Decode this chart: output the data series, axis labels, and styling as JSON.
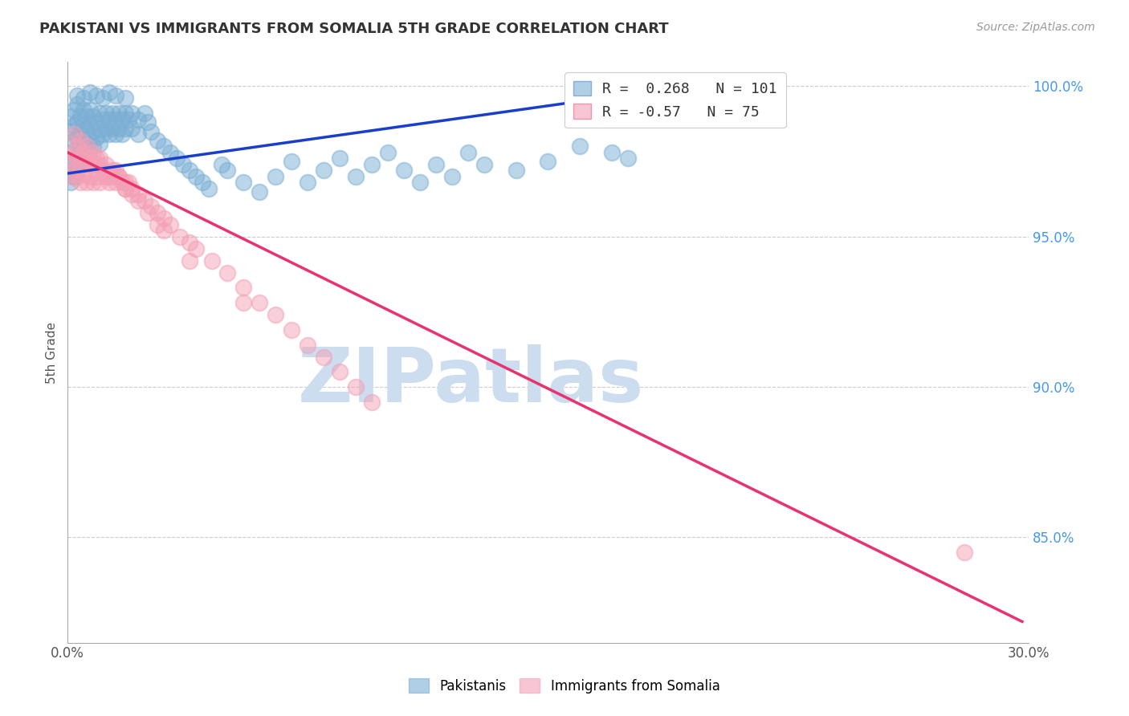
{
  "title": "PAKISTANI VS IMMIGRANTS FROM SOMALIA 5TH GRADE CORRELATION CHART",
  "source": "Source: ZipAtlas.com",
  "ylabel": "5th Grade",
  "xmin": 0.0,
  "xmax": 0.3,
  "ymin": 0.815,
  "ymax": 1.008,
  "yticks": [
    0.85,
    0.9,
    0.95,
    1.0
  ],
  "ytick_labels": [
    "85.0%",
    "90.0%",
    "95.0%",
    "100.0%"
  ],
  "xticks": [
    0.0,
    0.05,
    0.1,
    0.15,
    0.2,
    0.25,
    0.3
  ],
  "xtick_labels": [
    "0.0%",
    "",
    "",
    "",
    "",
    "",
    "30.0%"
  ],
  "blue_R": 0.268,
  "blue_N": 101,
  "pink_R": -0.57,
  "pink_N": 75,
  "blue_color": "#7bafd4",
  "pink_color": "#f4a0b5",
  "blue_line_color": "#1a3ecc",
  "pink_line_color": "#e8336e",
  "watermark": "ZIPatlas",
  "watermark_color": "#ccddf0",
  "legend_label_blue": "Pakistanis",
  "legend_label_pink": "Immigrants from Somalia",
  "blue_line_x0": 0.0,
  "blue_line_x1": 0.18,
  "blue_line_y0": 0.971,
  "blue_line_y1": 0.998,
  "pink_line_x0": 0.0,
  "pink_line_x1": 0.298,
  "pink_line_y0": 0.978,
  "pink_line_y1": 0.822,
  "blue_pts_x": [
    0.001,
    0.001,
    0.001,
    0.001,
    0.001,
    0.002,
    0.002,
    0.002,
    0.002,
    0.002,
    0.003,
    0.003,
    0.003,
    0.003,
    0.003,
    0.004,
    0.004,
    0.004,
    0.004,
    0.005,
    0.005,
    0.005,
    0.005,
    0.006,
    0.006,
    0.006,
    0.007,
    0.007,
    0.007,
    0.008,
    0.008,
    0.008,
    0.009,
    0.009,
    0.01,
    0.01,
    0.01,
    0.011,
    0.011,
    0.012,
    0.012,
    0.013,
    0.013,
    0.014,
    0.014,
    0.015,
    0.015,
    0.016,
    0.016,
    0.017,
    0.017,
    0.018,
    0.018,
    0.019,
    0.02,
    0.02,
    0.022,
    0.022,
    0.024,
    0.025,
    0.026,
    0.028,
    0.03,
    0.032,
    0.034,
    0.036,
    0.038,
    0.04,
    0.042,
    0.044,
    0.048,
    0.05,
    0.055,
    0.06,
    0.065,
    0.07,
    0.075,
    0.08,
    0.085,
    0.09,
    0.095,
    0.1,
    0.105,
    0.11,
    0.115,
    0.12,
    0.125,
    0.13,
    0.14,
    0.15,
    0.16,
    0.17,
    0.175,
    0.003,
    0.005,
    0.007,
    0.009,
    0.011,
    0.013,
    0.015,
    0.018
  ],
  "blue_pts_y": [
    0.99,
    0.985,
    0.978,
    0.972,
    0.968,
    0.992,
    0.987,
    0.982,
    0.975,
    0.97,
    0.994,
    0.988,
    0.983,
    0.977,
    0.972,
    0.99,
    0.985,
    0.98,
    0.975,
    0.992,
    0.987,
    0.982,
    0.977,
    0.99,
    0.985,
    0.98,
    0.992,
    0.987,
    0.982,
    0.99,
    0.985,
    0.98,
    0.988,
    0.983,
    0.991,
    0.986,
    0.981,
    0.989,
    0.984,
    0.991,
    0.986,
    0.989,
    0.984,
    0.991,
    0.986,
    0.989,
    0.984,
    0.991,
    0.986,
    0.989,
    0.984,
    0.991,
    0.986,
    0.989,
    0.991,
    0.986,
    0.989,
    0.984,
    0.991,
    0.988,
    0.985,
    0.982,
    0.98,
    0.978,
    0.976,
    0.974,
    0.972,
    0.97,
    0.968,
    0.966,
    0.974,
    0.972,
    0.968,
    0.965,
    0.97,
    0.975,
    0.968,
    0.972,
    0.976,
    0.97,
    0.974,
    0.978,
    0.972,
    0.968,
    0.974,
    0.97,
    0.978,
    0.974,
    0.972,
    0.975,
    0.98,
    0.978,
    0.976,
    0.997,
    0.996,
    0.998,
    0.997,
    0.996,
    0.998,
    0.997,
    0.996
  ],
  "pink_pts_x": [
    0.001,
    0.001,
    0.002,
    0.002,
    0.003,
    0.003,
    0.004,
    0.004,
    0.005,
    0.005,
    0.006,
    0.006,
    0.007,
    0.007,
    0.008,
    0.008,
    0.009,
    0.009,
    0.01,
    0.01,
    0.011,
    0.012,
    0.013,
    0.014,
    0.015,
    0.016,
    0.017,
    0.018,
    0.019,
    0.02,
    0.022,
    0.024,
    0.026,
    0.028,
    0.03,
    0.032,
    0.035,
    0.038,
    0.04,
    0.045,
    0.05,
    0.055,
    0.06,
    0.065,
    0.07,
    0.075,
    0.08,
    0.085,
    0.09,
    0.095,
    0.003,
    0.005,
    0.007,
    0.009,
    0.011,
    0.013,
    0.015,
    0.018,
    0.02,
    0.025,
    0.03,
    0.002,
    0.004,
    0.006,
    0.008,
    0.01,
    0.012,
    0.014,
    0.016,
    0.018,
    0.022,
    0.028,
    0.038,
    0.055,
    0.28
  ],
  "pink_pts_y": [
    0.975,
    0.97,
    0.978,
    0.972,
    0.976,
    0.97,
    0.974,
    0.968,
    0.977,
    0.971,
    0.974,
    0.968,
    0.976,
    0.97,
    0.974,
    0.968,
    0.976,
    0.97,
    0.974,
    0.968,
    0.972,
    0.97,
    0.968,
    0.97,
    0.972,
    0.97,
    0.968,
    0.966,
    0.968,
    0.966,
    0.964,
    0.962,
    0.96,
    0.958,
    0.956,
    0.954,
    0.95,
    0.948,
    0.946,
    0.942,
    0.938,
    0.933,
    0.928,
    0.924,
    0.919,
    0.914,
    0.91,
    0.905,
    0.9,
    0.895,
    0.98,
    0.978,
    0.976,
    0.974,
    0.972,
    0.97,
    0.968,
    0.966,
    0.964,
    0.958,
    0.952,
    0.984,
    0.982,
    0.98,
    0.978,
    0.976,
    0.974,
    0.972,
    0.97,
    0.968,
    0.962,
    0.954,
    0.942,
    0.928,
    0.845
  ]
}
